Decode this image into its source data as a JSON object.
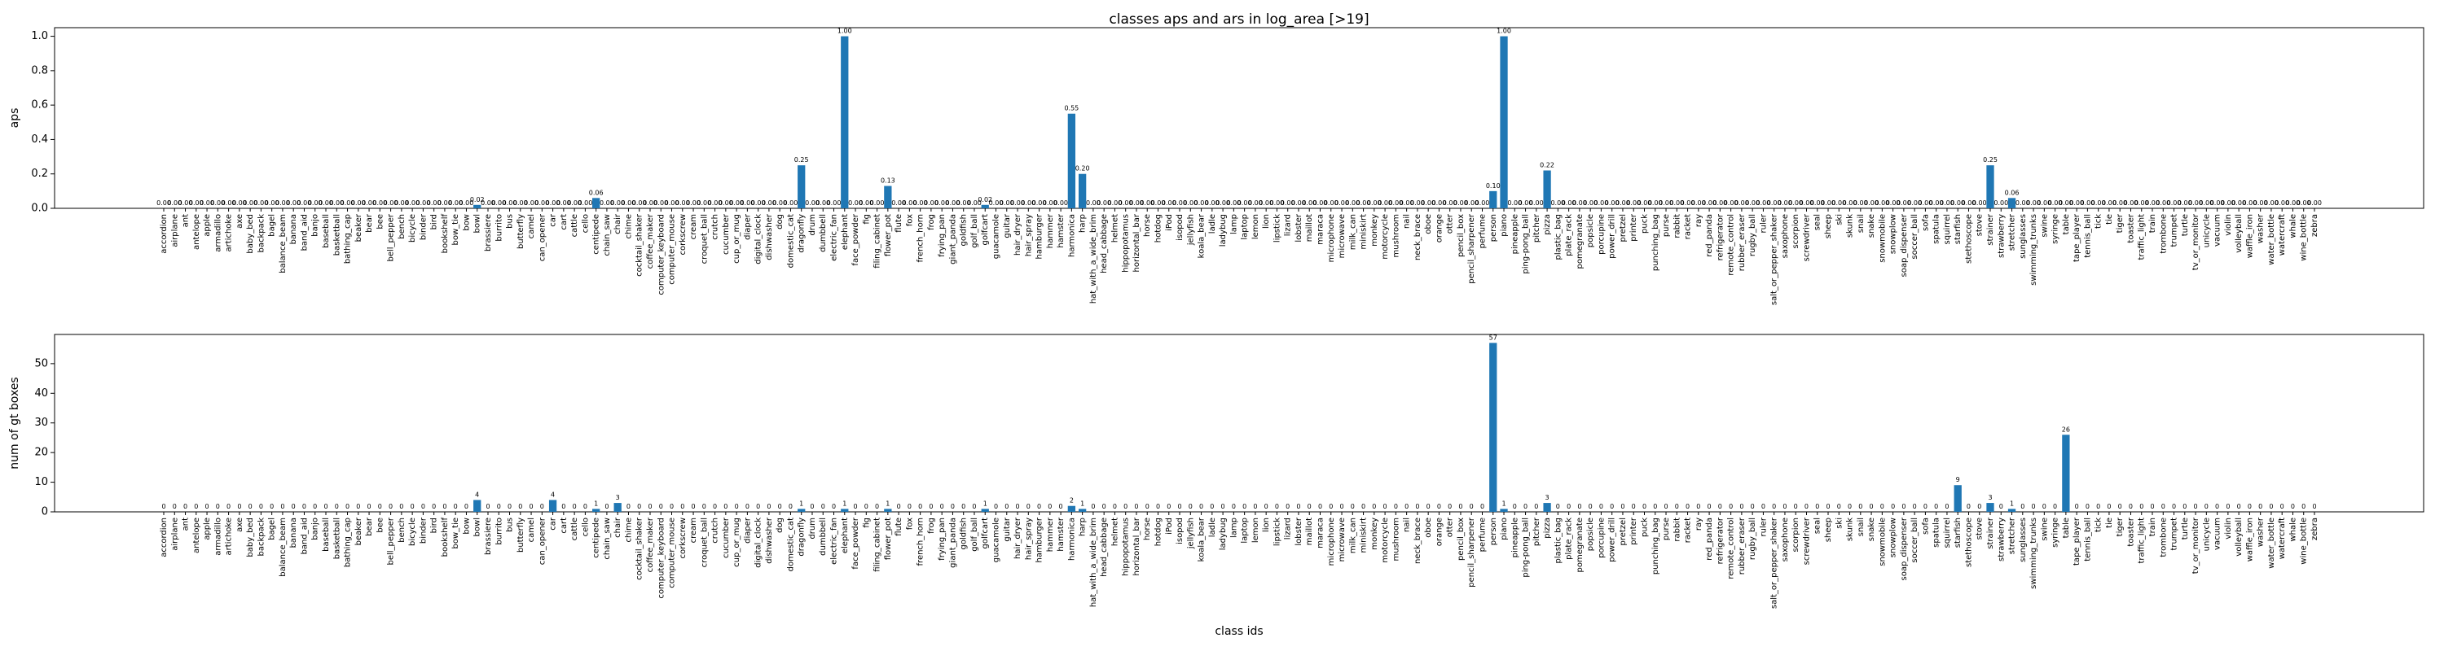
{
  "chart_data": [
    {
      "type": "bar",
      "title": "classes aps and ars in log_area [>19]",
      "ylabel": "aps",
      "color": "#1f77b4",
      "categories": [
        "accordion",
        "airplane",
        "ant",
        "antelope",
        "apple",
        "armadillo",
        "artichoke",
        "axe",
        "baby_bed",
        "backpack",
        "bagel",
        "balance_beam",
        "banana",
        "band_aid",
        "banjo",
        "baseball",
        "basketball",
        "bathing_cap",
        "beaker",
        "bear",
        "bee",
        "bell_pepper",
        "bench",
        "bicycle",
        "binder",
        "bird",
        "bookshelf",
        "bow_tie",
        "bow",
        "bowl",
        "brassiere",
        "burrito",
        "bus",
        "butterfly",
        "camel",
        "can_opener",
        "car",
        "cart",
        "cattle",
        "cello",
        "centipede",
        "chain_saw",
        "chair",
        "chime",
        "cocktail_shaker",
        "coffee_maker",
        "computer_keyboard",
        "computer_mouse",
        "corkscrew",
        "cream",
        "croquet_ball",
        "crutch",
        "cucumber",
        "cup_or_mug",
        "diaper",
        "digital_clock",
        "dishwasher",
        "dog",
        "domestic_cat",
        "dragonfly",
        "drum",
        "dumbbell",
        "electric_fan",
        "elephant",
        "face_powder",
        "fig",
        "filing_cabinet",
        "flower_pot",
        "flute",
        "fox",
        "french_horn",
        "frog",
        "frying_pan",
        "giant_panda",
        "goldfish",
        "golf_ball",
        "golfcart",
        "guacamole",
        "guitar",
        "hair_dryer",
        "hair_spray",
        "hamburger",
        "hammer",
        "hamster",
        "harmonica",
        "harp",
        "hat_with_a_wide_brim",
        "head_cabbage",
        "helmet",
        "hippopotamus",
        "horizontal_bar",
        "horse",
        "hotdog",
        "iPod",
        "isopod",
        "jellyfish",
        "koala_bear",
        "ladle",
        "ladybug",
        "lamp",
        "laptop",
        "lemon",
        "lion",
        "lipstick",
        "lizard",
        "lobster",
        "maillot",
        "maraca",
        "microphone",
        "microwave",
        "milk_can",
        "miniskirt",
        "monkey",
        "motorcycle",
        "mushroom",
        "nail",
        "neck_brace",
        "oboe",
        "orange",
        "otter",
        "pencil_box",
        "pencil_sharpener",
        "perfume",
        "person",
        "piano",
        "pineapple",
        "ping-pong_ball",
        "pitcher",
        "pizza",
        "plastic_bag",
        "plate_rack",
        "pomegranate",
        "popsicle",
        "porcupine",
        "power_drill",
        "pretzel",
        "printer",
        "puck",
        "punching_bag",
        "purse",
        "rabbit",
        "racket",
        "ray",
        "red_panda",
        "refrigerator",
        "remote_control",
        "rubber_eraser",
        "rugby_ball",
        "ruler",
        "salt_or_pepper_shaker",
        "saxophone",
        "scorpion",
        "screwdriver",
        "seal",
        "sheep",
        "ski",
        "skunk",
        "snail",
        "snake",
        "snowmobile",
        "snowplow",
        "soap_dispenser",
        "soccer_ball",
        "sofa",
        "spatula",
        "squirrel",
        "starfish",
        "stethoscope",
        "stove",
        "strainer",
        "strawberry",
        "stretcher",
        "sunglasses",
        "swimming_trunks",
        "swine",
        "syringe",
        "table",
        "tape_player",
        "tennis_ball",
        "tick",
        "tie",
        "tiger",
        "toaster",
        "traffic_light",
        "train",
        "trombone",
        "trumpet",
        "turtle",
        "tv_or_monitor",
        "unicycle",
        "vacuum",
        "violin",
        "volleyball",
        "waffle_iron",
        "washer",
        "water_bottle",
        "watercraft",
        "whale",
        "wine_bottle",
        "zebra"
      ],
      "values": [
        0,
        0,
        0,
        0,
        0,
        0,
        0,
        0,
        0,
        0,
        0,
        0,
        0,
        0,
        0,
        0,
        0,
        0,
        0,
        0,
        0,
        0,
        0,
        0,
        0,
        0,
        0,
        0,
        0,
        0.02,
        0,
        0,
        0,
        0,
        0,
        0,
        0,
        0,
        0,
        0,
        0.06,
        0,
        0,
        0,
        0,
        0,
        0,
        0,
        0,
        0,
        0,
        0,
        0,
        0,
        0,
        0,
        0,
        0,
        0,
        0.25,
        0,
        0,
        0,
        1,
        0,
        0,
        0,
        0.13,
        0,
        0,
        0,
        0,
        0,
        0,
        0,
        0,
        0.02,
        0,
        0,
        0,
        0,
        0,
        0,
        0,
        0.55,
        0.2,
        0,
        0,
        0,
        0,
        0,
        0,
        0,
        0,
        0,
        0,
        0,
        0,
        0,
        0,
        0,
        0,
        0,
        0,
        0,
        0,
        0,
        0,
        0,
        0,
        0,
        0,
        0,
        0,
        0,
        0,
        0,
        0,
        0,
        0,
        0,
        0,
        0,
        0.1,
        1,
        0,
        0,
        0,
        0.22,
        0,
        0,
        0,
        0,
        0,
        0,
        0,
        0,
        0,
        0,
        0,
        0,
        0,
        0,
        0,
        0,
        0,
        0,
        0,
        0,
        0,
        0,
        0,
        0,
        0,
        0,
        0,
        0,
        0,
        0,
        0,
        0,
        0,
        0,
        0,
        0,
        0,
        0,
        0,
        0,
        0.25,
        0,
        0.06,
        0,
        0,
        0,
        0,
        0,
        0,
        0,
        0,
        0,
        0,
        0,
        0,
        0,
        0,
        0,
        0,
        0,
        0,
        0,
        0,
        0,
        0,
        0,
        0,
        0,
        0,
        0,
        0
      ],
      "value_labels": [
        "0.00",
        "0.00",
        "0.00",
        "0.00",
        "0.00",
        "0.00",
        "0.00",
        "0.00",
        "0.00",
        "0.00",
        "0.00",
        "0.00",
        "0.00",
        "0.00",
        "0.00",
        "0.00",
        "0.00",
        "0.00",
        "0.00",
        "0.00",
        "0.00",
        "0.00",
        "0.00",
        "0.00",
        "0.00",
        "0.00",
        "0.00",
        "0.00",
        "0.00",
        "0.02",
        "0.00",
        "0.00",
        "0.00",
        "0.00",
        "0.00",
        "0.00",
        "0.00",
        "0.00",
        "0.00",
        "0.00",
        "0.06",
        "0.00",
        "0.00",
        "0.00",
        "0.00",
        "0.00",
        "0.00",
        "0.00",
        "0.00",
        "0.00",
        "0.00",
        "0.00",
        "0.00",
        "0.00",
        "0.00",
        "0.00",
        "0.00",
        "0.00",
        "0.00",
        "0.25",
        "0.00",
        "0.00",
        "0.00",
        "1.00",
        "0.00",
        "0.00",
        "0.00",
        "0.13",
        "0.00",
        "0.00",
        "0.00",
        "0.00",
        "0.00",
        "0.00",
        "0.00",
        "0.00",
        "0.02",
        "0.00",
        "0.00",
        "0.00",
        "0.00",
        "0.00",
        "0.00",
        "0.00",
        "0.55",
        "0.20",
        "0.00",
        "0.00",
        "0.00",
        "0.00",
        "0.00",
        "0.00",
        "0.00",
        "0.00",
        "0.00",
        "0.00",
        "0.00",
        "0.00",
        "0.00",
        "0.00",
        "0.00",
        "0.00",
        "0.00",
        "0.00",
        "0.00",
        "0.00",
        "0.00",
        "0.00",
        "0.00",
        "0.00",
        "0.00",
        "0.00",
        "0.00",
        "0.00",
        "0.00",
        "0.00",
        "0.00",
        "0.00",
        "0.00",
        "0.00",
        "0.00",
        "0.00",
        "0.00",
        "0.10",
        "1.00",
        "0.00",
        "0.00",
        "0.00",
        "0.22",
        "0.00",
        "0.00",
        "0.00",
        "0.00",
        "0.00",
        "0.00",
        "0.00",
        "0.00",
        "0.00",
        "0.00",
        "0.00",
        "0.00",
        "0.00",
        "0.00",
        "0.00",
        "0.00",
        "0.00",
        "0.00",
        "0.00",
        "0.00",
        "0.00",
        "0.00",
        "0.00",
        "0.00",
        "0.00",
        "0.00",
        "0.00",
        "0.00",
        "0.00",
        "0.00",
        "0.00",
        "0.00",
        "0.00",
        "0.00",
        "0.00",
        "0.00",
        "0.00",
        "0.00",
        "0.00",
        "0.00",
        "0.25",
        "0.00",
        "0.06",
        "0.00",
        "0.00",
        "0.00",
        "0.00",
        "0.00",
        "0.00",
        "0.00",
        "0.00",
        "0.00",
        "0.00",
        "0.00",
        "0.00",
        "0.00",
        "0.00",
        "0.00",
        "0.00",
        "0.00",
        "0.00",
        "0.00",
        "0.00",
        "0.00",
        "0.00",
        "0.00",
        "0.00",
        "0.00",
        "0.00",
        "0.00",
        "0.00"
      ],
      "ylim": [
        0,
        1.05
      ],
      "yticks": [
        {
          "value": 0,
          "label": "0.0"
        },
        0.2,
        0.4,
        0.6,
        0.8,
        {
          "value": 1,
          "label": "1.0"
        }
      ]
    },
    {
      "type": "bar",
      "ylabel": "num of gt boxes",
      "xlabel": "class ids",
      "color": "#1f77b4",
      "categories": [
        "accordion",
        "airplane",
        "ant",
        "antelope",
        "apple",
        "armadillo",
        "artichoke",
        "axe",
        "baby_bed",
        "backpack",
        "bagel",
        "balance_beam",
        "banana",
        "band_aid",
        "banjo",
        "baseball",
        "basketball",
        "bathing_cap",
        "beaker",
        "bear",
        "bee",
        "bell_pepper",
        "bench",
        "bicycle",
        "binder",
        "bird",
        "bookshelf",
        "bow_tie",
        "bow",
        "bowl",
        "brassiere",
        "burrito",
        "bus",
        "butterfly",
        "camel",
        "can_opener",
        "car",
        "cart",
        "cattle",
        "cello",
        "centipede",
        "chain_saw",
        "chair",
        "chime",
        "cocktail_shaker",
        "coffee_maker",
        "computer_keyboard",
        "computer_mouse",
        "corkscrew",
        "cream",
        "croquet_ball",
        "crutch",
        "cucumber",
        "cup_or_mug",
        "diaper",
        "digital_clock",
        "dishwasher",
        "dog",
        "domestic_cat",
        "dragonfly",
        "drum",
        "dumbbell",
        "electric_fan",
        "elephant",
        "face_powder",
        "fig",
        "filing_cabinet",
        "flower_pot",
        "flute",
        "fox",
        "french_horn",
        "frog",
        "frying_pan",
        "giant_panda",
        "goldfish",
        "golf_ball",
        "golfcart",
        "guacamole",
        "guitar",
        "hair_dryer",
        "hair_spray",
        "hamburger",
        "hammer",
        "hamster",
        "harmonica",
        "harp",
        "hat_with_a_wide_brim",
        "head_cabbage",
        "helmet",
        "hippopotamus",
        "horizontal_bar",
        "horse",
        "hotdog",
        "iPod",
        "isopod",
        "jellyfish",
        "koala_bear",
        "ladle",
        "ladybug",
        "lamp",
        "laptop",
        "lemon",
        "lion",
        "lipstick",
        "lizard",
        "lobster",
        "maillot",
        "maraca",
        "microphone",
        "microwave",
        "milk_can",
        "miniskirt",
        "monkey",
        "motorcycle",
        "mushroom",
        "nail",
        "neck_brace",
        "oboe",
        "orange",
        "otter",
        "pencil_box",
        "pencil_sharpener",
        "perfume",
        "person",
        "piano",
        "pineapple",
        "ping-pong_ball",
        "pitcher",
        "pizza",
        "plastic_bag",
        "plate_rack",
        "pomegranate",
        "popsicle",
        "porcupine",
        "power_drill",
        "pretzel",
        "printer",
        "puck",
        "punching_bag",
        "purse",
        "rabbit",
        "racket",
        "ray",
        "red_panda",
        "refrigerator",
        "remote_control",
        "rubber_eraser",
        "rugby_ball",
        "ruler",
        "salt_or_pepper_shaker",
        "saxophone",
        "scorpion",
        "screwdriver",
        "seal",
        "sheep",
        "ski",
        "skunk",
        "snail",
        "snake",
        "snowmobile",
        "snowplow",
        "soap_dispenser",
        "soccer_ball",
        "sofa",
        "spatula",
        "squirrel",
        "starfish",
        "stethoscope",
        "stove",
        "strainer",
        "strawberry",
        "stretcher",
        "sunglasses",
        "swimming_trunks",
        "swine",
        "syringe",
        "table",
        "tape_player",
        "tennis_ball",
        "tick",
        "tie",
        "tiger",
        "toaster",
        "traffic_light",
        "train",
        "trombone",
        "trumpet",
        "turtle",
        "tv_or_monitor",
        "unicycle",
        "vacuum",
        "violin",
        "volleyball",
        "waffle_iron",
        "washer",
        "water_bottle",
        "watercraft",
        "whale",
        "wine_bottle",
        "zebra"
      ],
      "values": [
        0,
        0,
        0,
        0,
        0,
        0,
        0,
        0,
        0,
        0,
        0,
        0,
        0,
        0,
        0,
        0,
        0,
        0,
        0,
        0,
        0,
        0,
        0,
        0,
        0,
        0,
        0,
        0,
        0,
        4,
        0,
        0,
        0,
        0,
        0,
        0,
        4,
        0,
        0,
        0,
        1,
        0,
        3,
        0,
        0,
        0,
        0,
        0,
        0,
        0,
        0,
        0,
        0,
        0,
        0,
        0,
        0,
        0,
        0,
        1,
        0,
        0,
        0,
        1,
        0,
        0,
        0,
        1,
        0,
        0,
        0,
        0,
        0,
        0,
        0,
        0,
        1,
        0,
        0,
        0,
        0,
        0,
        0,
        0,
        2,
        1,
        0,
        0,
        0,
        0,
        0,
        0,
        0,
        0,
        0,
        0,
        0,
        0,
        0,
        0,
        0,
        0,
        0,
        0,
        0,
        0,
        0,
        0,
        0,
        0,
        0,
        0,
        0,
        0,
        0,
        0,
        0,
        0,
        0,
        0,
        0,
        0,
        0,
        57,
        1,
        0,
        0,
        0,
        3,
        0,
        0,
        0,
        0,
        0,
        0,
        0,
        0,
        0,
        0,
        0,
        0,
        0,
        0,
        0,
        0,
        0,
        0,
        0,
        0,
        0,
        0,
        0,
        0,
        0,
        0,
        0,
        0,
        0,
        0,
        0,
        0,
        0,
        0,
        0,
        0,
        0,
        9,
        0,
        0,
        3,
        0,
        1,
        0,
        0,
        0,
        0,
        26,
        0,
        0,
        0,
        0,
        0,
        0,
        0,
        0,
        0,
        0,
        0,
        0,
        0,
        0,
        0,
        0,
        0,
        0,
        0,
        0,
        0,
        0,
        0
      ],
      "ylim": [
        0,
        59.85
      ],
      "yticks": [
        0,
        10,
        20,
        30,
        40,
        50
      ]
    }
  ]
}
